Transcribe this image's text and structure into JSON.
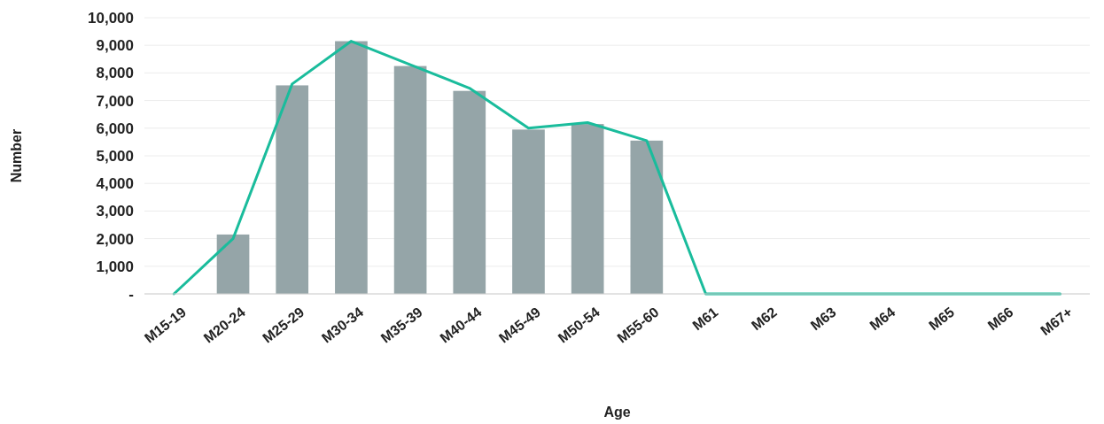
{
  "chart_data": {
    "type": "bar",
    "xlabel": "Age",
    "ylabel": "Number",
    "categories": [
      "M15-19",
      "M20-24",
      "M25-29",
      "M30-34",
      "M35-39",
      "M40-44",
      "M45-49",
      "M50-54",
      "M55-60",
      "M61",
      "M62",
      "M63",
      "M64",
      "M65",
      "M66",
      "M67+"
    ],
    "series": [
      {
        "color": "#95a5a8",
        "values": [
          0,
          2150,
          7550,
          9150,
          8250,
          7350,
          5950,
          6150,
          5550,
          0,
          0,
          0,
          0,
          0,
          0,
          0
        ]
      },
      {
        "type": "line",
        "color": "#1abc9c",
        "values": [
          0,
          2000,
          7600,
          9150,
          8300,
          7450,
          6000,
          6200,
          5550,
          0,
          0,
          0,
          0,
          0,
          0,
          0
        ]
      }
    ],
    "ylim": [
      0,
      10000
    ],
    "yticks": [
      {
        "value": 0,
        "label": "-"
      },
      {
        "value": 1000,
        "label": "1,000"
      },
      {
        "value": 2000,
        "label": "2,000"
      },
      {
        "value": 3000,
        "label": "3,000"
      },
      {
        "value": 4000,
        "label": "4,000"
      },
      {
        "value": 5000,
        "label": "5,000"
      },
      {
        "value": 6000,
        "label": "6,000"
      },
      {
        "value": 7000,
        "label": "7,000"
      },
      {
        "value": 8000,
        "label": "8,000"
      },
      {
        "value": 9000,
        "label": "9,000"
      },
      {
        "value": 10000,
        "label": "10,000"
      }
    ],
    "grid": "y",
    "marker": "none",
    "line_style": "solid"
  }
}
